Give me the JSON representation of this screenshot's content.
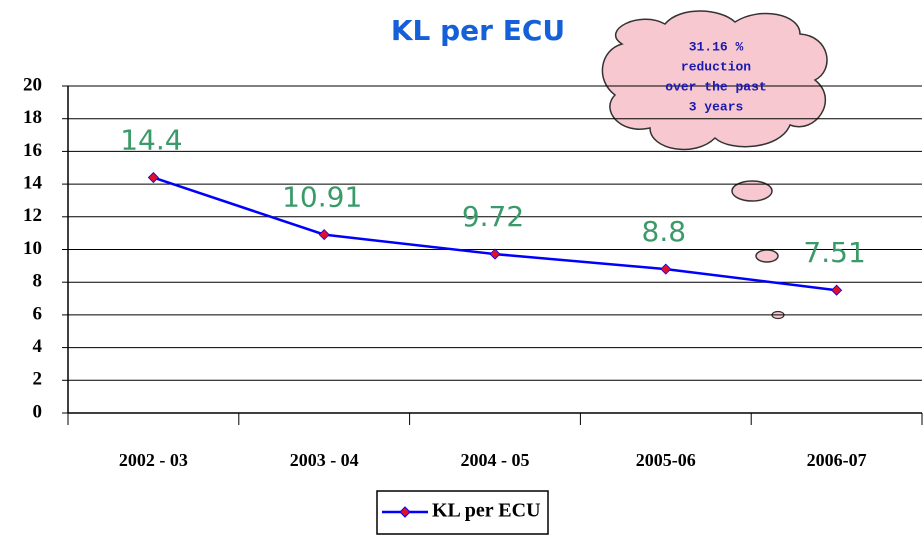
{
  "chart_data": {
    "type": "line",
    "title": "KL per ECU",
    "categories": [
      "2002 - 03",
      "2003 - 04",
      "2004 - 05",
      "2005-06",
      "2006-07"
    ],
    "series": [
      {
        "name": "KL per ECU",
        "color": "#0000ff",
        "marker_color": "#e0102a",
        "values": [
          14.4,
          10.91,
          9.72,
          8.8,
          7.51
        ]
      }
    ],
    "ylim": [
      0,
      20
    ],
    "yticks": [
      0,
      2,
      4,
      6,
      8,
      10,
      12,
      14,
      16,
      18,
      20
    ],
    "grid": true,
    "data_label_color": "#3a9a6a",
    "legend": "bottom",
    "annotation": [
      "31.16 %",
      "reduction",
      "over the past",
      "3 years"
    ]
  }
}
